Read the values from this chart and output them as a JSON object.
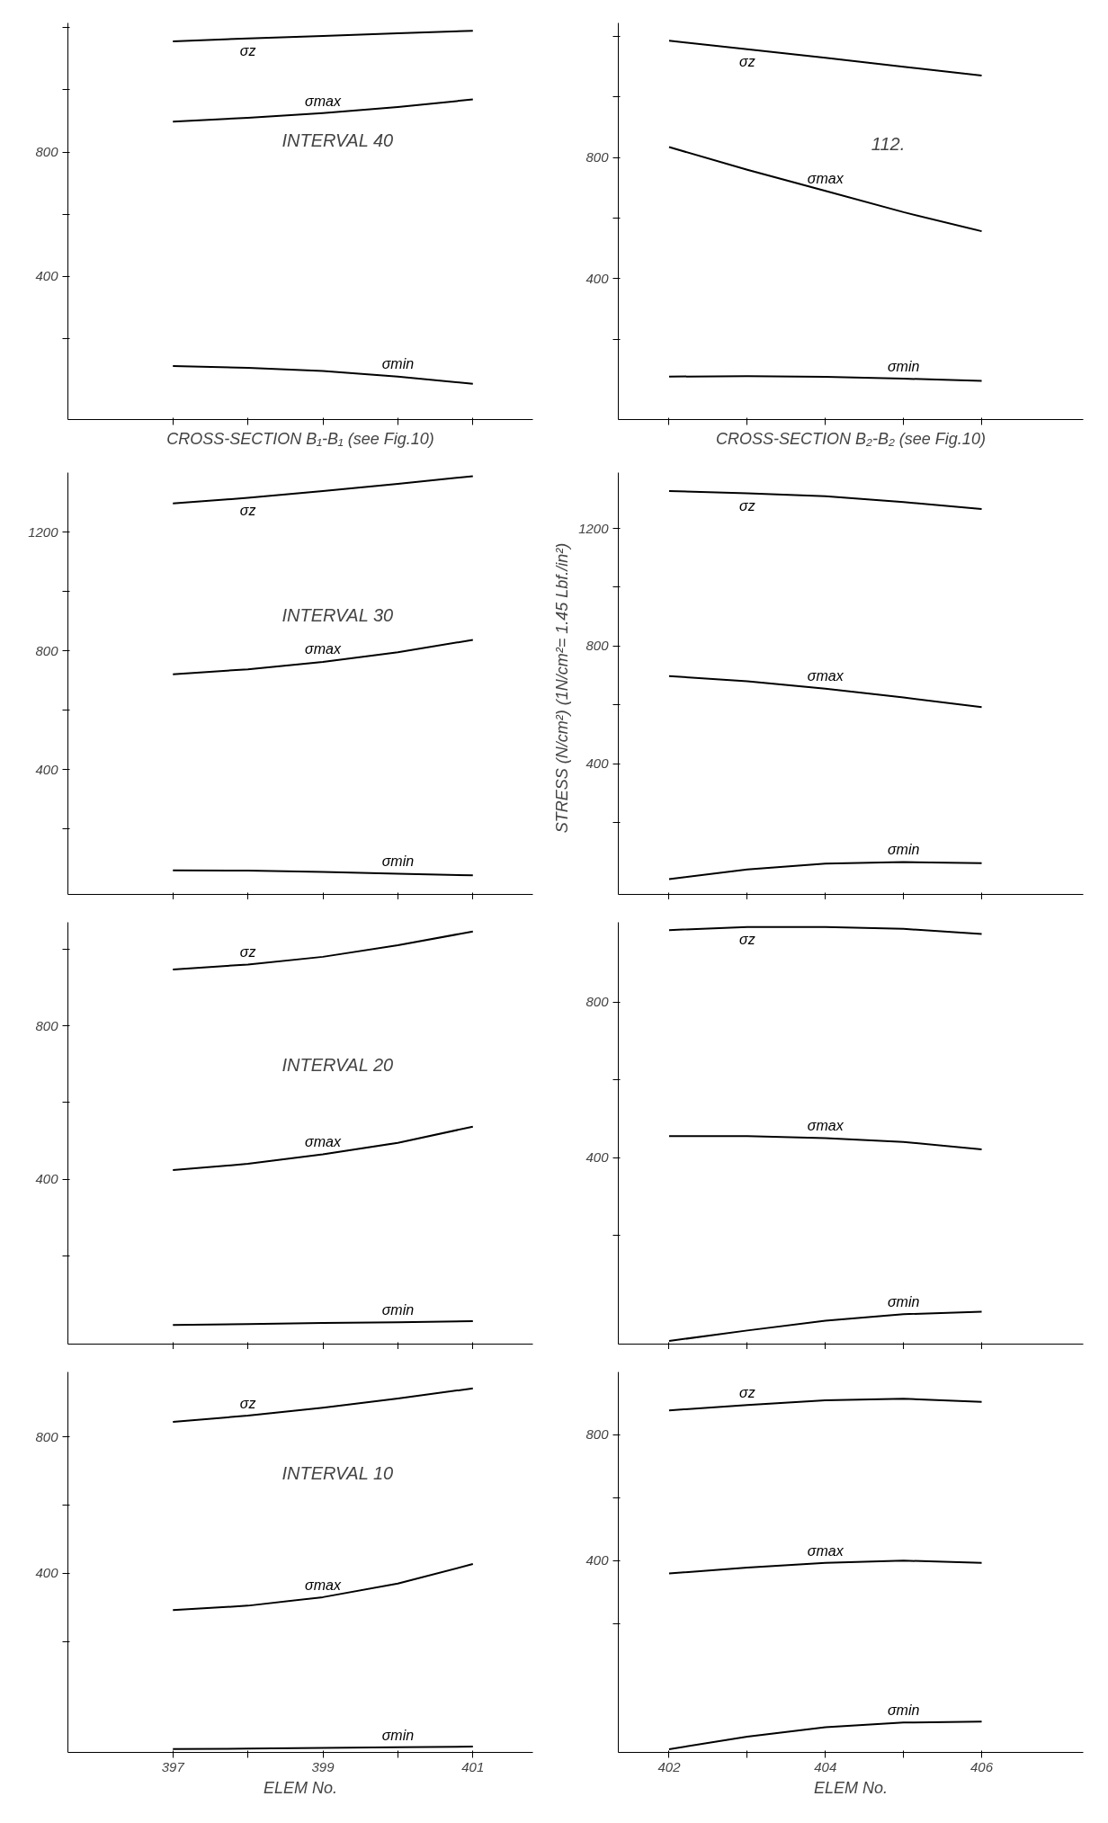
{
  "chart_data": [
    {
      "type": "line",
      "annotations": [
        "INTERVAL 40"
      ],
      "xlabel": "CROSS-SECTION B₁-B₁ (see Fig.10)",
      "x": [
        397,
        398,
        399,
        400,
        401
      ],
      "xlim": [
        395.6,
        401.8
      ],
      "xticks": [
        {
          "value": 397,
          "label": null
        },
        {
          "value": 398,
          "label": null
        },
        {
          "value": 399,
          "label": null
        },
        {
          "value": 400,
          "label": null
        },
        {
          "value": 401,
          "label": null
        }
      ],
      "ylim": [
        -60,
        1215
      ],
      "yticks": [
        {
          "value": 200,
          "label": null
        },
        400,
        {
          "value": 600,
          "label": null
        },
        800,
        {
          "value": 1000,
          "label": null
        },
        {
          "value": 1200,
          "label": null
        }
      ],
      "tick_labels": "y",
      "grid": false,
      "series": [
        {
          "name": "σz",
          "color": "#000000",
          "values": [
            1156,
            1165,
            1173,
            1182,
            1190
          ]
        },
        {
          "name": "σmax",
          "color": "#000000",
          "values": [
            898,
            910,
            925,
            945,
            969
          ]
        },
        {
          "name": "σmin",
          "color": "#000000",
          "values": [
            112,
            106,
            96,
            78,
            55
          ]
        }
      ]
    },
    {
      "type": "line",
      "annotations": [
        "112."
      ],
      "xlabel": "CROSS-SECTION B₂-B₂ (see Fig.10)",
      "x": [
        402,
        403,
        404,
        405,
        406
      ],
      "xlim": [
        401.35,
        407.3
      ],
      "xticks": [
        {
          "value": 402,
          "label": null
        },
        {
          "value": 403,
          "label": null
        },
        {
          "value": 404,
          "label": null
        },
        {
          "value": 405,
          "label": null
        },
        {
          "value": 406,
          "label": null
        }
      ],
      "ylim": [
        -65,
        1245
      ],
      "yticks": [
        {
          "value": 200,
          "label": null
        },
        400,
        {
          "value": 600,
          "label": null
        },
        800,
        {
          "value": 1000,
          "label": null
        },
        {
          "value": 1200,
          "label": null
        }
      ],
      "tick_labels": "y",
      "grid": false,
      "series": [
        {
          "name": "σz",
          "color": "#000000",
          "values": [
            1186,
            1158,
            1130,
            1100,
            1071
          ]
        },
        {
          "name": "σmax",
          "color": "#000000",
          "values": [
            835,
            760,
            690,
            620,
            557
          ]
        },
        {
          "name": "σmin",
          "color": "#000000",
          "values": [
            77,
            78,
            76,
            70,
            63
          ]
        }
      ]
    },
    {
      "type": "line",
      "annotations": [
        "INTERVAL 30"
      ],
      "x": [
        397,
        398,
        399,
        400,
        401
      ],
      "xlim": [
        395.6,
        401.8
      ],
      "xticks": [
        {
          "value": 397,
          "label": null
        },
        {
          "value": 398,
          "label": null
        },
        {
          "value": 399,
          "label": null
        },
        {
          "value": 400,
          "label": null
        },
        {
          "value": 401,
          "label": null
        }
      ],
      "ylim": [
        -20,
        1400
      ],
      "yticks": [
        {
          "value": 200,
          "label": null
        },
        400,
        {
          "value": 600,
          "label": null
        },
        800,
        {
          "value": 1000,
          "label": null
        },
        1200
      ],
      "tick_labels": "y",
      "grid": false,
      "series": [
        {
          "name": "σz",
          "color": "#000000",
          "values": [
            1296,
            1315,
            1338,
            1362,
            1388
          ]
        },
        {
          "name": "σmax",
          "color": "#000000",
          "values": [
            721,
            738,
            763,
            795,
            837
          ]
        },
        {
          "name": "σmin",
          "color": "#000000",
          "values": [
            61,
            60,
            56,
            50,
            44
          ]
        }
      ]
    },
    {
      "type": "line",
      "ylabel": "STRESS (N/cm²)   (1N/cm²= 1.45 Lbf./in²)",
      "x": [
        402,
        403,
        404,
        405,
        406
      ],
      "xlim": [
        401.35,
        407.3
      ],
      "xticks": [
        {
          "value": 402,
          "label": null
        },
        {
          "value": 403,
          "label": null
        },
        {
          "value": 404,
          "label": null
        },
        {
          "value": 405,
          "label": null
        },
        {
          "value": 406,
          "label": null
        }
      ],
      "ylim": [
        -45,
        1390
      ],
      "yticks": [
        {
          "value": 200,
          "label": null
        },
        400,
        {
          "value": 600,
          "label": null
        },
        800,
        {
          "value": 1000,
          "label": null
        },
        1200
      ],
      "tick_labels": "y",
      "grid": false,
      "series": [
        {
          "name": "σz",
          "color": "#000000",
          "values": [
            1327,
            1320,
            1310,
            1290,
            1266
          ]
        },
        {
          "name": "σmax",
          "color": "#000000",
          "values": [
            698,
            680,
            655,
            625,
            592
          ]
        },
        {
          "name": "σmin",
          "color": "#000000",
          "values": [
            7,
            40,
            60,
            65,
            61
          ]
        }
      ]
    },
    {
      "type": "line",
      "annotations": [
        "INTERVAL 20"
      ],
      "x": [
        397,
        398,
        399,
        400,
        401
      ],
      "xlim": [
        395.6,
        401.8
      ],
      "xticks": [
        {
          "value": 397,
          "label": null
        },
        {
          "value": 398,
          "label": null
        },
        {
          "value": 399,
          "label": null
        },
        {
          "value": 400,
          "label": null
        },
        {
          "value": 401,
          "label": null
        }
      ],
      "ylim": [
        -30,
        1070
      ],
      "yticks": [
        {
          "value": 200,
          "label": null
        },
        400,
        {
          "value": 600,
          "label": null
        },
        800,
        {
          "value": 1000,
          "label": null
        }
      ],
      "tick_labels": "y",
      "grid": false,
      "series": [
        {
          "name": "σz",
          "color": "#000000",
          "values": [
            947,
            960,
            980,
            1010,
            1046
          ]
        },
        {
          "name": "σmax",
          "color": "#000000",
          "values": [
            424,
            440,
            465,
            495,
            537
          ]
        },
        {
          "name": "σmin",
          "color": "#000000",
          "values": [
            20,
            22,
            25,
            27,
            30
          ]
        }
      ]
    },
    {
      "type": "line",
      "x": [
        402,
        403,
        404,
        405,
        406
      ],
      "xlim": [
        401.35,
        407.3
      ],
      "xticks": [
        {
          "value": 402,
          "label": null
        },
        {
          "value": 403,
          "label": null
        },
        {
          "value": 404,
          "label": null
        },
        {
          "value": 405,
          "label": null
        },
        {
          "value": 406,
          "label": null
        }
      ],
      "ylim": [
        -80,
        1005
      ],
      "yticks": [
        {
          "value": 200,
          "label": null
        },
        400,
        {
          "value": 600,
          "label": null
        },
        800
      ],
      "tick_labels": "y",
      "grid": false,
      "series": [
        {
          "name": "σz",
          "color": "#000000",
          "values": [
            985,
            993,
            993,
            988,
            975
          ]
        },
        {
          "name": "σmax",
          "color": "#000000",
          "values": [
            455,
            455,
            450,
            440,
            421
          ]
        },
        {
          "name": "σmin",
          "color": "#000000",
          "values": [
            -72,
            -45,
            -20,
            -3,
            3
          ]
        }
      ]
    },
    {
      "type": "line",
      "annotations": [
        "INTERVAL 10"
      ],
      "xlabel": "ELEM No.",
      "x": [
        397,
        398,
        399,
        400,
        401
      ],
      "xlim": [
        395.6,
        401.8
      ],
      "xticks": [
        397,
        {
          "value": 398,
          "label": null
        },
        399,
        {
          "value": 400,
          "label": null
        },
        401
      ],
      "ylim": [
        -125,
        990
      ],
      "yticks": [
        {
          "value": 200,
          "label": null
        },
        400,
        {
          "value": 600,
          "label": null
        },
        800
      ],
      "grid": false,
      "series": [
        {
          "name": "σz",
          "color": "#000000",
          "values": [
            844,
            862,
            885,
            912,
            942
          ]
        },
        {
          "name": "σmax",
          "color": "#000000",
          "values": [
            292,
            305,
            330,
            370,
            427
          ]
        },
        {
          "name": "σmin",
          "color": "#000000",
          "values": [
            -115,
            -114,
            -112,
            -110,
            -108
          ]
        }
      ]
    },
    {
      "type": "line",
      "xlabel": "ELEM No.",
      "x": [
        402,
        403,
        404,
        405,
        406
      ],
      "xlim": [
        401.35,
        407.3
      ],
      "xticks": [
        402,
        {
          "value": 403,
          "label": null
        },
        404,
        {
          "value": 405,
          "label": null
        },
        406
      ],
      "ylim": [
        -210,
        1000
      ],
      "yticks": [
        {
          "value": 200,
          "label": null
        },
        400,
        {
          "value": 600,
          "label": null
        },
        800
      ],
      "grid": false,
      "series": [
        {
          "name": "σz",
          "color": "#000000",
          "values": [
            878,
            895,
            910,
            915,
            905
          ]
        },
        {
          "name": "σmax",
          "color": "#000000",
          "values": [
            359,
            378,
            393,
            400,
            393
          ]
        },
        {
          "name": "σmin",
          "color": "#000000",
          "values": [
            -200,
            -160,
            -130,
            -115,
            -112
          ]
        }
      ]
    }
  ]
}
